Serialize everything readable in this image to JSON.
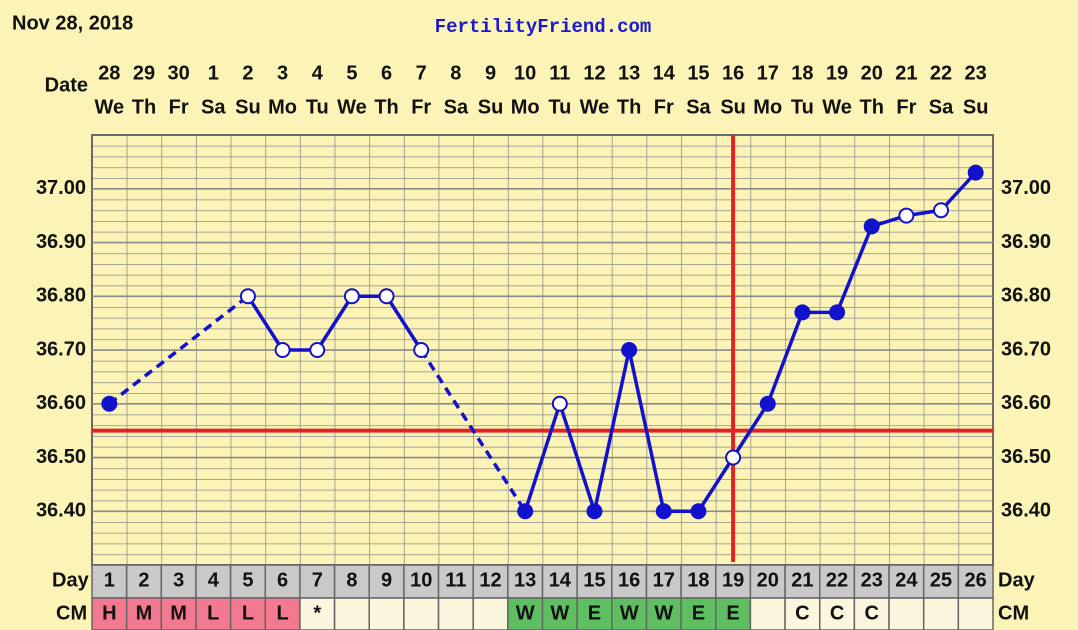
{
  "chart_data": {
    "type": "line",
    "title": "Nov 28, 2018",
    "site": "FertilityFriend.com",
    "date_label": "Date",
    "day_label": "Day",
    "cm_label": "CM",
    "categories": [
      "1",
      "2",
      "3",
      "4",
      "5",
      "6",
      "7",
      "8",
      "9",
      "10",
      "11",
      "12",
      "13",
      "14",
      "15",
      "16",
      "17",
      "18",
      "19",
      "20",
      "21",
      "22",
      "23",
      "24",
      "25",
      "26"
    ],
    "dates": [
      "28",
      "29",
      "30",
      "1",
      "2",
      "3",
      "4",
      "5",
      "6",
      "7",
      "8",
      "9",
      "10",
      "11",
      "12",
      "13",
      "14",
      "15",
      "16",
      "17",
      "18",
      "19",
      "20",
      "21",
      "22",
      "23"
    ],
    "weekdays": [
      "We",
      "Th",
      "Fr",
      "Sa",
      "Su",
      "Mo",
      "Tu",
      "We",
      "Th",
      "Fr",
      "Sa",
      "Su",
      "Mo",
      "Tu",
      "We",
      "Th",
      "Fr",
      "Sa",
      "Su",
      "Mo",
      "Tu",
      "We",
      "Th",
      "Fr",
      "Sa",
      "Su"
    ],
    "cm": [
      "H",
      "M",
      "M",
      "L",
      "L",
      "L",
      "*",
      null,
      null,
      null,
      null,
      null,
      "W",
      "W",
      "E",
      "W",
      "W",
      "E",
      "E",
      null,
      "C",
      "C",
      "C",
      null,
      null,
      null
    ],
    "cm_colors": {
      "H": "#f2798f",
      "M": "#f2798f",
      "L": "#f2798f",
      "W": "#5fbe62",
      "E": "#5fbe62"
    },
    "series": [
      {
        "name": "Temperature",
        "color": "#1212cc",
        "values": [
          36.6,
          null,
          null,
          null,
          36.8,
          36.7,
          36.7,
          36.8,
          36.8,
          36.7,
          null,
          null,
          36.4,
          36.6,
          36.4,
          36.7,
          36.4,
          36.4,
          36.5,
          36.6,
          36.77,
          36.77,
          36.93,
          36.95,
          36.96,
          37.03
        ],
        "markers": [
          "filled",
          null,
          null,
          null,
          "open",
          "open",
          "open",
          "open",
          "open",
          "open",
          null,
          null,
          "filled",
          "open",
          "filled",
          "filled",
          "filled",
          "filled",
          "open",
          "filled",
          "filled",
          "filled",
          "filled",
          "open",
          "open",
          "filled"
        ]
      }
    ],
    "coverline": 36.55,
    "coverline_color": "#e02424",
    "ovulation_day": 19,
    "ylim": [
      36.3,
      37.1
    ],
    "yticks": [
      {
        "value": 36.4,
        "label": "36.40"
      },
      {
        "value": 36.5,
        "label": "36.50"
      },
      {
        "value": 36.6,
        "label": "36.60"
      },
      {
        "value": 36.7,
        "label": "36.70"
      },
      {
        "value": 36.8,
        "label": "36.80"
      },
      {
        "value": 36.9,
        "label": "36.90"
      },
      {
        "value": 37.0,
        "label": "37.00"
      }
    ]
  }
}
